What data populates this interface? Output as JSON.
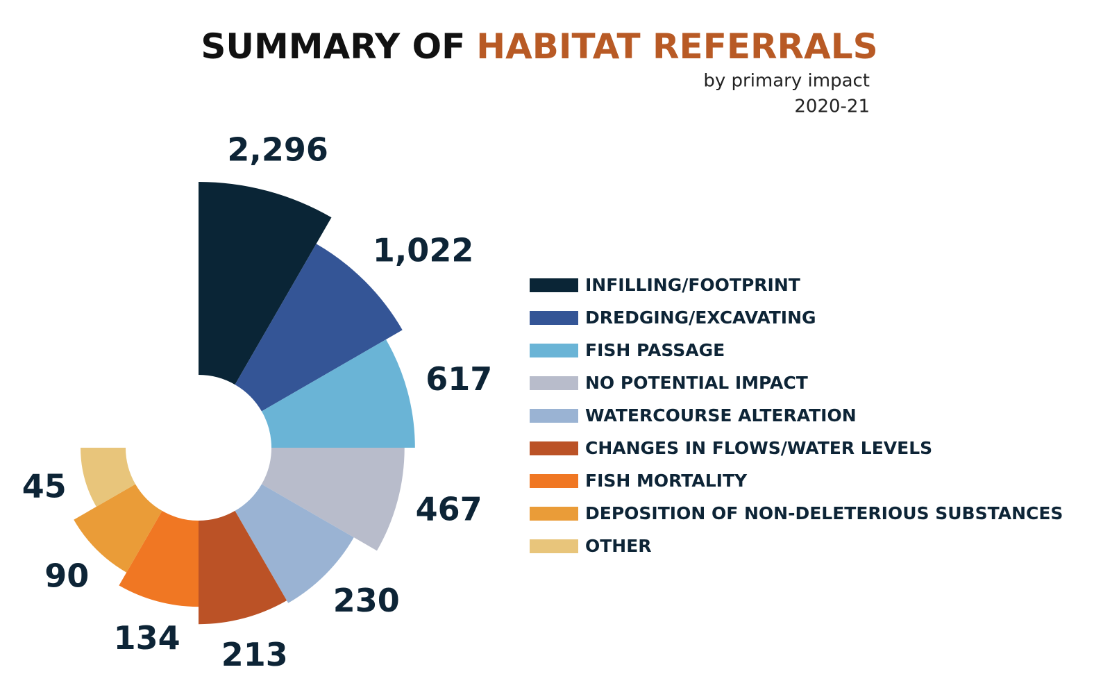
{
  "chart_data": {
    "type": "rose",
    "title": "SUMMARY OF",
    "title_highlight": "HABITAT REFERRALS",
    "subtitle": [
      "by primary impact",
      "2020-21"
    ],
    "categories": [
      "INFILLING/FOOTPRINT",
      "DREDGING/EXCAVATING",
      "FISH PASSAGE",
      "NO POTENTIAL IMPACT",
      "WATERCOURSE ALTERATION",
      "CHANGES IN FLOWS/WATER LEVELS",
      "FISH MORTALITY",
      "DEPOSITION OF NON-DELETERIOUS SUBSTANCES",
      "OTHER"
    ],
    "values": [
      2296,
      1022,
      617,
      467,
      230,
      213,
      134,
      90,
      45
    ],
    "value_labels": [
      "2,296",
      "1,022",
      "617",
      "467",
      "230",
      "213",
      "134",
      "90",
      "45"
    ],
    "colors": [
      "#0a2536",
      "#345596",
      "#6ab4d6",
      "#b8bccb",
      "#9ab3d3",
      "#bb5226",
      "#f07723",
      "#ea9c38",
      "#e8c57b"
    ],
    "scale": "log",
    "legend": "right"
  }
}
